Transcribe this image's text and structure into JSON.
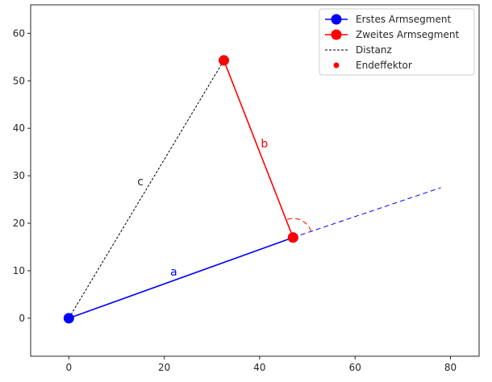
{
  "chart_data": {
    "type": "line",
    "title": "",
    "xlabel": "",
    "ylabel": "",
    "xlim": [
      -8,
      86
    ],
    "ylim": [
      -8,
      66
    ],
    "xticks": [
      0,
      20,
      40,
      60,
      80
    ],
    "yticks": [
      0,
      10,
      20,
      30,
      40,
      50,
      60
    ],
    "xtick_labels": [
      "0",
      "20",
      "40",
      "60",
      "80"
    ],
    "ytick_labels": [
      "0",
      "10",
      "20",
      "30",
      "40",
      "50",
      "60"
    ],
    "grid": false,
    "legend_position": "top-right",
    "series": [
      {
        "name": "Erstes Armsegment",
        "color": "#0000ff",
        "style": "solid-marker",
        "x": [
          0,
          47
        ],
        "y": [
          0,
          17
        ]
      },
      {
        "name": "Zweites Armsegment",
        "color": "#ff0000",
        "style": "solid-marker",
        "x": [
          47,
          32.5
        ],
        "y": [
          17,
          54.3
        ]
      },
      {
        "name": "Distanz",
        "color": "#000000",
        "style": "dashed",
        "x": [
          0,
          32.5
        ],
        "y": [
          0,
          54.3
        ]
      },
      {
        "name": "Endeffektor",
        "color": "#ff0000",
        "style": "marker-only",
        "x": [
          32.5
        ],
        "y": [
          54.3
        ]
      }
    ],
    "extension_line": {
      "color": "#0000ff",
      "style": "dashed",
      "x": [
        47,
        78
      ],
      "y": [
        17,
        27.5
      ]
    },
    "angle_arc": {
      "color": "#ff0000",
      "center": [
        47,
        17
      ],
      "radius": 4,
      "start_deg": 20,
      "end_deg": 110
    },
    "annotations": [
      {
        "text": "a",
        "x": 22,
        "y": 9,
        "color": "#0000ff"
      },
      {
        "text": "b",
        "x": 41,
        "y": 36,
        "color": "#ff0000"
      },
      {
        "text": "c",
        "x": 15,
        "y": 28,
        "color": "#262626"
      }
    ]
  }
}
